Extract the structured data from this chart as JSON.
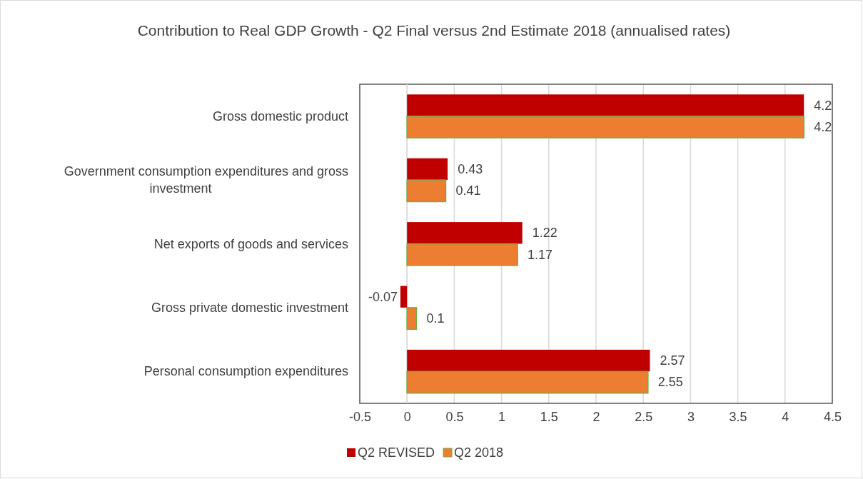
{
  "chart_data": {
    "type": "bar",
    "orientation": "horizontal",
    "title": "Contribution to Real GDP Growth - Q2 Final versus 2nd Estimate 2018 (annualised rates)",
    "categories": [
      "Gross domestic product",
      "Government consumption expenditures and gross investment",
      "Net exports of goods and services",
      "Gross private domestic investment",
      "Personal consumption expenditures"
    ],
    "series": [
      {
        "name": "Q2 REVISED",
        "color": "#c00000",
        "values": [
          4.2,
          0.43,
          1.22,
          -0.07,
          2.57
        ]
      },
      {
        "name": "Q2 2018",
        "color": "#ed7d31",
        "values": [
          4.2,
          0.41,
          1.17,
          0.1,
          2.55
        ]
      }
    ],
    "xlim": [
      -0.5,
      4.5
    ],
    "xticks": [
      -0.5,
      0,
      0.5,
      1,
      1.5,
      2,
      2.5,
      3,
      3.5,
      4,
      4.5
    ],
    "grid": "x",
    "legend": "bottom",
    "data_labels": true
  }
}
